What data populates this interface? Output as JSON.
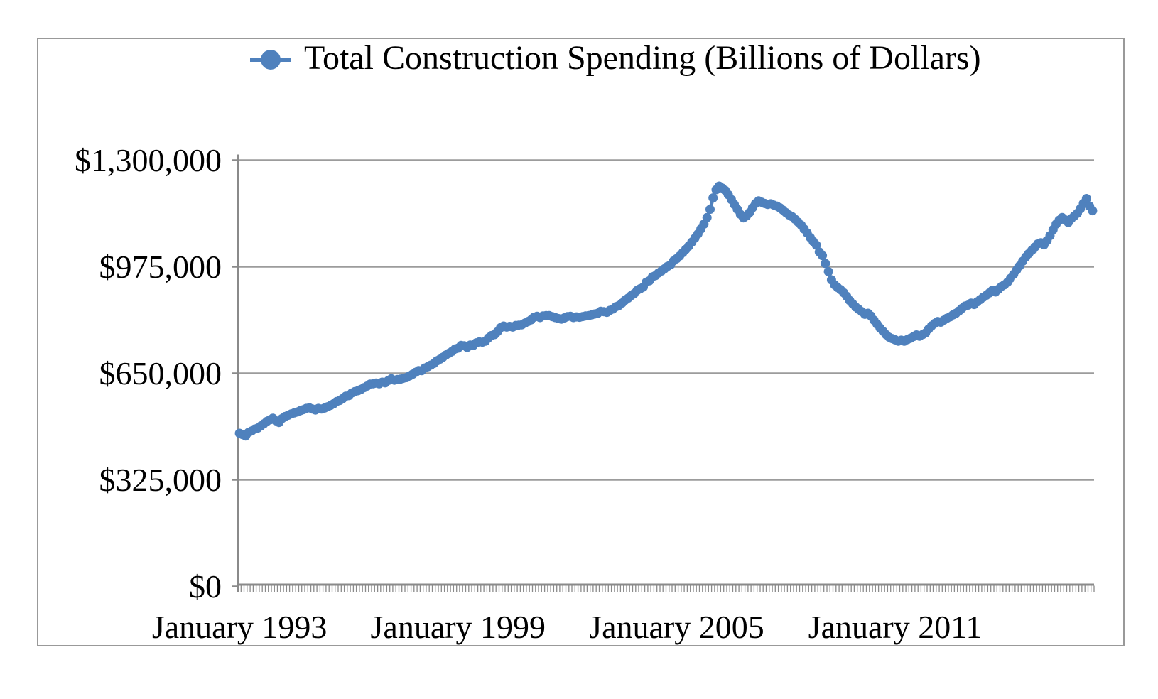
{
  "legend": {
    "label": "Total Construction Spending (Billions of Dollars)"
  },
  "chart_data": {
    "type": "line",
    "title": "Total Construction Spending (Billions of Dollars)",
    "legend_position": "top",
    "grid": "horizontal",
    "x_frequency": "monthly",
    "x_start": "January 1993",
    "x_end": "June 2016",
    "x_tick_labels": [
      "January 1993",
      "January 1999",
      "January 2005",
      "January 2011"
    ],
    "x_tick_month_indices": [
      0,
      72,
      144,
      216
    ],
    "y_tick_labels": [
      "$1,300,000",
      "$975,000",
      "$650,000",
      "$325,000",
      "$0"
    ],
    "y_tick_values": [
      1300000,
      975000,
      650000,
      325000,
      0
    ],
    "ylim": [
      0,
      1300000
    ],
    "colors": {
      "series": "#4F81BD",
      "gridline": "#9C9C9C",
      "axis": "#8A8A8A",
      "frame": "#999999",
      "text": "#000000"
    },
    "series": [
      {
        "name": "Total Construction Spending (Billions of Dollars)",
        "values": [
          467000,
          463000,
          459000,
          470000,
          474000,
          480000,
          483000,
          489000,
          496000,
          503000,
          508000,
          513000,
          505000,
          500000,
          512000,
          518000,
          522000,
          526000,
          529000,
          532000,
          536000,
          539000,
          543000,
          545000,
          541000,
          538000,
          543000,
          541000,
          544000,
          548000,
          552000,
          557000,
          564000,
          567000,
          573000,
          580000,
          582000,
          590000,
          594000,
          597000,
          601000,
          606000,
          611000,
          617000,
          618000,
          620000,
          618000,
          623000,
          621000,
          628000,
          633000,
          629000,
          631000,
          632000,
          635000,
          637000,
          642000,
          647000,
          653000,
          658000,
          658000,
          666000,
          670000,
          675000,
          680000,
          688000,
          693000,
          699000,
          706000,
          711000,
          717000,
          724000,
          727000,
          735000,
          734000,
          729000,
          736000,
          735000,
          743000,
          746000,
          745000,
          748000,
          758000,
          765000,
          768000,
          777000,
          789000,
          794000,
          791000,
          793000,
          791000,
          796000,
          797000,
          798000,
          803000,
          808000,
          813000,
          821000,
          824000,
          820000,
          825000,
          826000,
          826000,
          823000,
          820000,
          817000,
          815000,
          819000,
          823000,
          824000,
          820000,
          822000,
          821000,
          823000,
          825000,
          826000,
          828000,
          831000,
          833000,
          839000,
          838000,
          836000,
          842000,
          846000,
          853000,
          857000,
          864000,
          873000,
          879000,
          887000,
          893000,
          903000,
          908000,
          913000,
          928000,
          932000,
          944000,
          948000,
          956000,
          962000,
          969000,
          976000,
          981000,
          993000,
          1000000,
          1008000,
          1018000,
          1028000,
          1038000,
          1050000,
          1062000,
          1075000,
          1090000,
          1105000,
          1125000,
          1150000,
          1185000,
          1210000,
          1221000,
          1215000,
          1208000,
          1195000,
          1180000,
          1165000,
          1150000,
          1135000,
          1124000,
          1130000,
          1140000,
          1155000,
          1168000,
          1176000,
          1172000,
          1168000,
          1165000,
          1167000,
          1163000,
          1160000,
          1155000,
          1148000,
          1140000,
          1133000,
          1128000,
          1120000,
          1111000,
          1102000,
          1090000,
          1078000,
          1064000,
          1052000,
          1041000,
          1020000,
          1009000,
          985000,
          960000,
          935000,
          920000,
          912000,
          905000,
          896000,
          885000,
          872000,
          862000,
          852000,
          845000,
          838000,
          830000,
          833000,
          825000,
          812000,
          800000,
          788000,
          778000,
          768000,
          760000,
          756000,
          752000,
          748000,
          751000,
          748000,
          753000,
          757000,
          762000,
          767000,
          763000,
          768000,
          773000,
          785000,
          795000,
          802000,
          808000,
          806000,
          812000,
          818000,
          822000,
          828000,
          833000,
          840000,
          848000,
          855000,
          858000,
          864000,
          860000,
          868000,
          875000,
          882000,
          888000,
          895000,
          903000,
          898000,
          906000,
          915000,
          920000,
          928000,
          940000,
          952000,
          965000,
          978000,
          992000,
          1005000,
          1015000,
          1025000,
          1035000,
          1045000,
          1048000,
          1042000,
          1055000,
          1070000,
          1088000,
          1105000,
          1117000,
          1125000,
          1118000,
          1110000,
          1122000,
          1130000,
          1138000,
          1152000,
          1168000,
          1183000,
          1160000,
          1146000
        ]
      }
    ]
  }
}
